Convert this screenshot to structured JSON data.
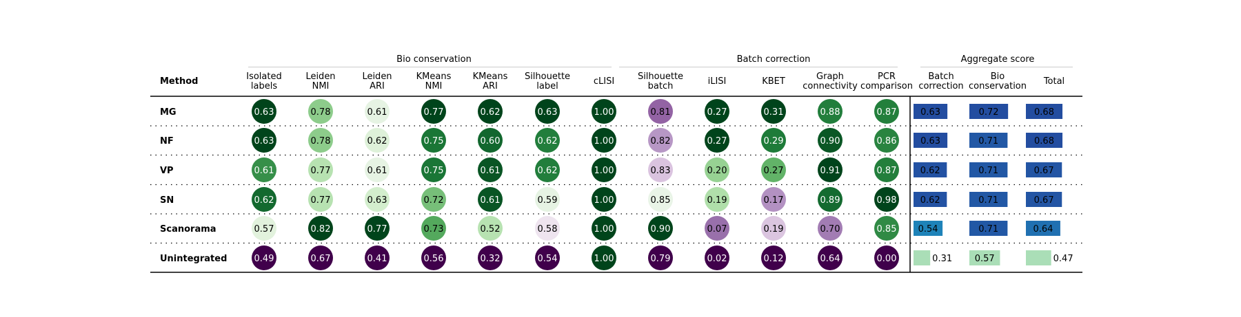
{
  "chart_data": {
    "type": "table",
    "method_header": "Method",
    "groups": [
      {
        "name": "Bio conservation",
        "columns": [
          "Isolated labels",
          "Leiden NMI",
          "Leiden ARI",
          "KMeans NMI",
          "KMeans ARI",
          "Silhouette label",
          "cLISI"
        ]
      },
      {
        "name": "Batch correction",
        "columns": [
          "Silhouette batch",
          "iLISI",
          "KBET",
          "Graph connectivity",
          "PCR comparison"
        ]
      },
      {
        "name": "Aggregate score",
        "columns": [
          "Batch correction",
          "Bio conservation",
          "Total"
        ]
      }
    ],
    "column_headers": [
      [
        "Isolated",
        "labels"
      ],
      [
        "Leiden",
        "NMI"
      ],
      [
        "Leiden",
        "ARI"
      ],
      [
        "KMeans",
        "NMI"
      ],
      [
        "KMeans",
        "ARI"
      ],
      [
        "Silhouette",
        "label"
      ],
      [
        "cLISI"
      ],
      [
        "Silhouette",
        "batch"
      ],
      [
        "iLISI"
      ],
      [
        "KBET"
      ],
      [
        "Graph",
        "connectivity"
      ],
      [
        "PCR",
        "comparison"
      ],
      [
        "Batch",
        "correction"
      ],
      [
        "Bio",
        "conservation"
      ],
      [
        "Total"
      ]
    ],
    "methods": [
      "MG",
      "NF",
      "VP",
      "SN",
      "Scanorama",
      "Unintegrated"
    ],
    "metric_values": [
      [
        "0.63",
        "0.78",
        "0.61",
        "0.77",
        "0.62",
        "0.63",
        "1.00",
        "0.81",
        "0.27",
        "0.31",
        "0.88",
        "0.87"
      ],
      [
        "0.63",
        "0.78",
        "0.62",
        "0.75",
        "0.60",
        "0.62",
        "1.00",
        "0.82",
        "0.27",
        "0.29",
        "0.90",
        "0.86"
      ],
      [
        "0.61",
        "0.77",
        "0.61",
        "0.75",
        "0.61",
        "0.62",
        "1.00",
        "0.83",
        "0.20",
        "0.27",
        "0.91",
        "0.87"
      ],
      [
        "0.62",
        "0.77",
        "0.63",
        "0.72",
        "0.61",
        "0.59",
        "1.00",
        "0.85",
        "0.19",
        "0.17",
        "0.89",
        "0.98"
      ],
      [
        "0.57",
        "0.82",
        "0.77",
        "0.73",
        "0.52",
        "0.58",
        "1.00",
        "0.90",
        "0.07",
        "0.19",
        "0.70",
        "0.85"
      ],
      [
        "0.49",
        "0.67",
        "0.41",
        "0.56",
        "0.32",
        "0.54",
        "1.00",
        "0.79",
        "0.02",
        "0.12",
        "0.64",
        "0.00"
      ]
    ],
    "aggregate_values": [
      [
        "0.63",
        "0.72",
        "0.68"
      ],
      [
        "0.63",
        "0.71",
        "0.68"
      ],
      [
        "0.62",
        "0.71",
        "0.67"
      ],
      [
        "0.62",
        "0.71",
        "0.67"
      ],
      [
        "0.54",
        "0.71",
        "0.64"
      ],
      [
        "0.31",
        "0.57",
        "0.47"
      ]
    ],
    "colormaps": {
      "metric_circles": "PRGn",
      "aggregate_bars": "YlGnBu"
    },
    "grid": "dotted row separators"
  }
}
